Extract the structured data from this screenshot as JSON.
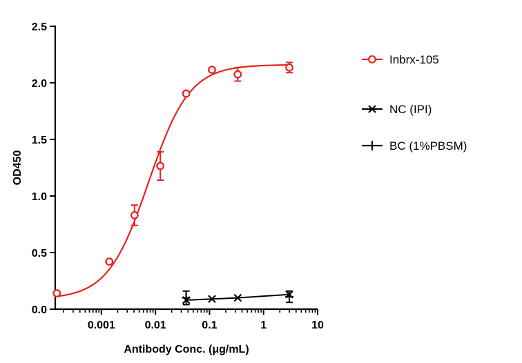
{
  "chart_data": {
    "type": "scatter",
    "xlabel": "Antibody Conc. (μg/mL)",
    "ylabel": "OD450",
    "xscale": "log",
    "xlim": [
      0.00014,
      10
    ],
    "ylim": [
      0,
      2.5
    ],
    "x_ticks": [
      0.001,
      0.01,
      0.1,
      1,
      10
    ],
    "x_tick_labels": [
      "0.001",
      "0.01",
      "0.1",
      "1",
      "10"
    ],
    "y_ticks": [
      0,
      0.5,
      1.0,
      1.5,
      2.0,
      2.5
    ],
    "y_tick_labels": [
      "0.0",
      "0.5",
      "1.0",
      "1.5",
      "2.0",
      "2.5"
    ],
    "grid": false,
    "legend_position": "right",
    "series": [
      {
        "name": "Inbrx-105",
        "color": "#e8221c",
        "marker": "open-circle",
        "x": [
          0.00015,
          0.0014,
          0.0041,
          0.0123,
          0.037,
          0.111,
          0.333,
          3.0
        ],
        "y": [
          0.14,
          0.42,
          0.83,
          1.265,
          1.905,
          2.115,
          2.075,
          2.135
        ],
        "err": [
          0,
          0,
          0.09,
          0.125,
          0,
          0,
          0.06,
          0.045
        ],
        "fit": {
          "model": "4PL",
          "bottom": 0.09,
          "top": 2.16,
          "ec50": 0.0075,
          "hill": 1.15
        }
      },
      {
        "name": "NC (IPI)",
        "color": "#000000",
        "marker": "x",
        "x": [
          0.037,
          0.111,
          0.333,
          3.0
        ],
        "y": [
          0.08,
          0.09,
          0.1,
          0.13
        ]
      },
      {
        "name": "BC (1%PBSM)",
        "color": "#000000",
        "marker": "plus",
        "x": [
          0.037,
          3.0
        ],
        "y": [
          0.1,
          0.11
        ],
        "err": [
          0.06,
          0.05
        ]
      }
    ]
  }
}
